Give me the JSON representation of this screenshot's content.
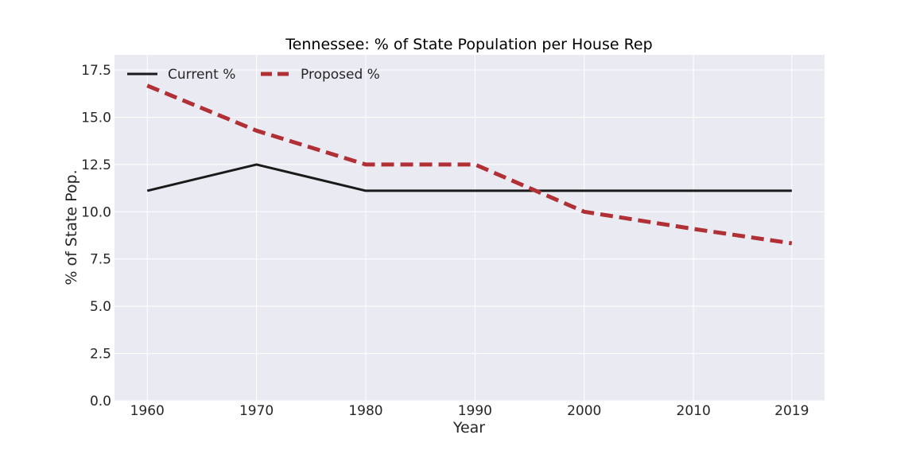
{
  "chart_data": {
    "type": "line",
    "title": "Tennessee: % of State Population per House Rep",
    "xlabel": "Year",
    "ylabel": "% of State Pop.",
    "x": [
      1960,
      1970,
      1980,
      1990,
      2000,
      2010,
      2019
    ],
    "x_tick_labels": [
      "1960",
      "1970",
      "1980",
      "1990",
      "2000",
      "2010",
      "2019"
    ],
    "y_ticks": [
      0.0,
      2.5,
      5.0,
      7.5,
      10.0,
      12.5,
      15.0,
      17.5
    ],
    "y_tick_labels": [
      "0.0",
      "2.5",
      "5.0",
      "7.5",
      "10.0",
      "12.5",
      "15.0",
      "17.5"
    ],
    "xlim": [
      1957,
      2022
    ],
    "ylim": [
      0,
      18.3
    ],
    "grid": true,
    "legend_position": "top-left",
    "series": [
      {
        "name": "Current %",
        "values": [
          11.11,
          12.5,
          11.11,
          11.11,
          11.11,
          11.11,
          11.11
        ],
        "color": "#1a1a1a",
        "style": "solid"
      },
      {
        "name": "Proposed %",
        "values": [
          16.67,
          14.29,
          12.5,
          12.5,
          10.0,
          9.09,
          8.33
        ],
        "color": "#b03035",
        "style": "dashed"
      }
    ]
  },
  "colors": {
    "plot_background": "#eaeaf2",
    "grid": "#ffffff"
  }
}
